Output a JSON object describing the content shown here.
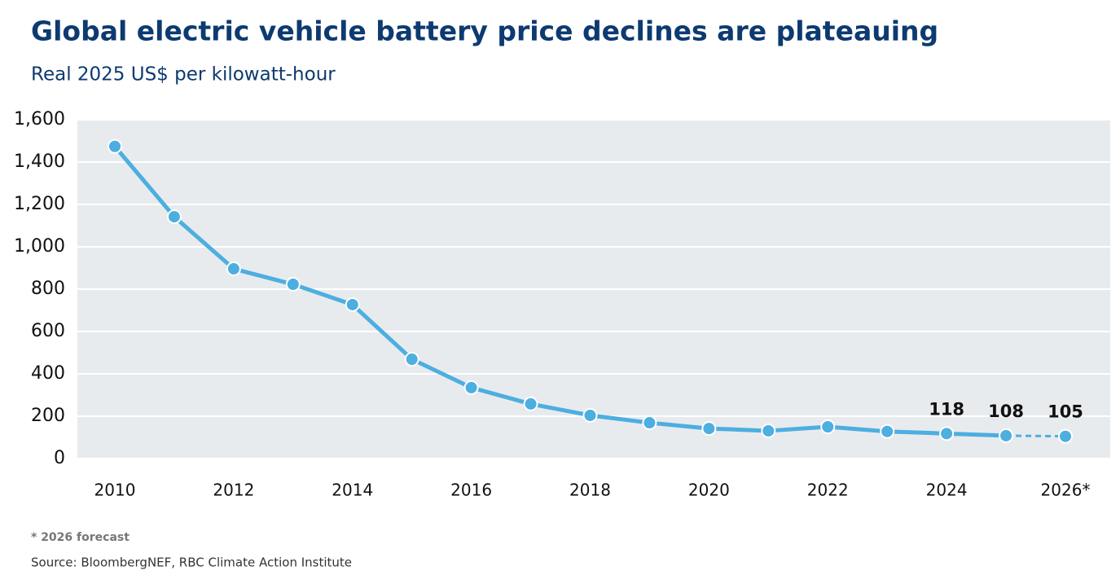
{
  "chart_data": {
    "type": "line",
    "title": "Global electric vehicle battery price declines are plateauing",
    "subtitle": "Real 2025 US$ per kilowatt-hour",
    "categories": [
      "2010",
      null,
      "2012",
      null,
      "2014",
      null,
      "2016",
      null,
      "2018",
      null,
      "2020",
      null,
      "2022",
      null,
      "2024",
      null,
      "2026*"
    ],
    "values": [
      1474,
      1142,
      896,
      823,
      727,
      469,
      335,
      258,
      204,
      169,
      142,
      131,
      150,
      128,
      118,
      108,
      105
    ],
    "value_labels": [
      null,
      null,
      null,
      null,
      null,
      null,
      null,
      null,
      null,
      null,
      null,
      null,
      null,
      null,
      "118",
      "108",
      "105"
    ],
    "color": "#4daee0",
    "ylim": [
      0,
      1600
    ],
    "yticks": [
      0,
      200,
      400,
      600,
      800,
      {
        "value": 1000,
        "label": "1,000"
      },
      {
        "value": 1200,
        "label": "1,200"
      },
      {
        "value": 1400,
        "label": "1,400"
      },
      {
        "value": 1600,
        "label": "1,600"
      }
    ],
    "grid": true,
    "footnote": "* 2026 forecast",
    "source": "Source: BloombergNEF, RBC Climate Action Institute"
  }
}
